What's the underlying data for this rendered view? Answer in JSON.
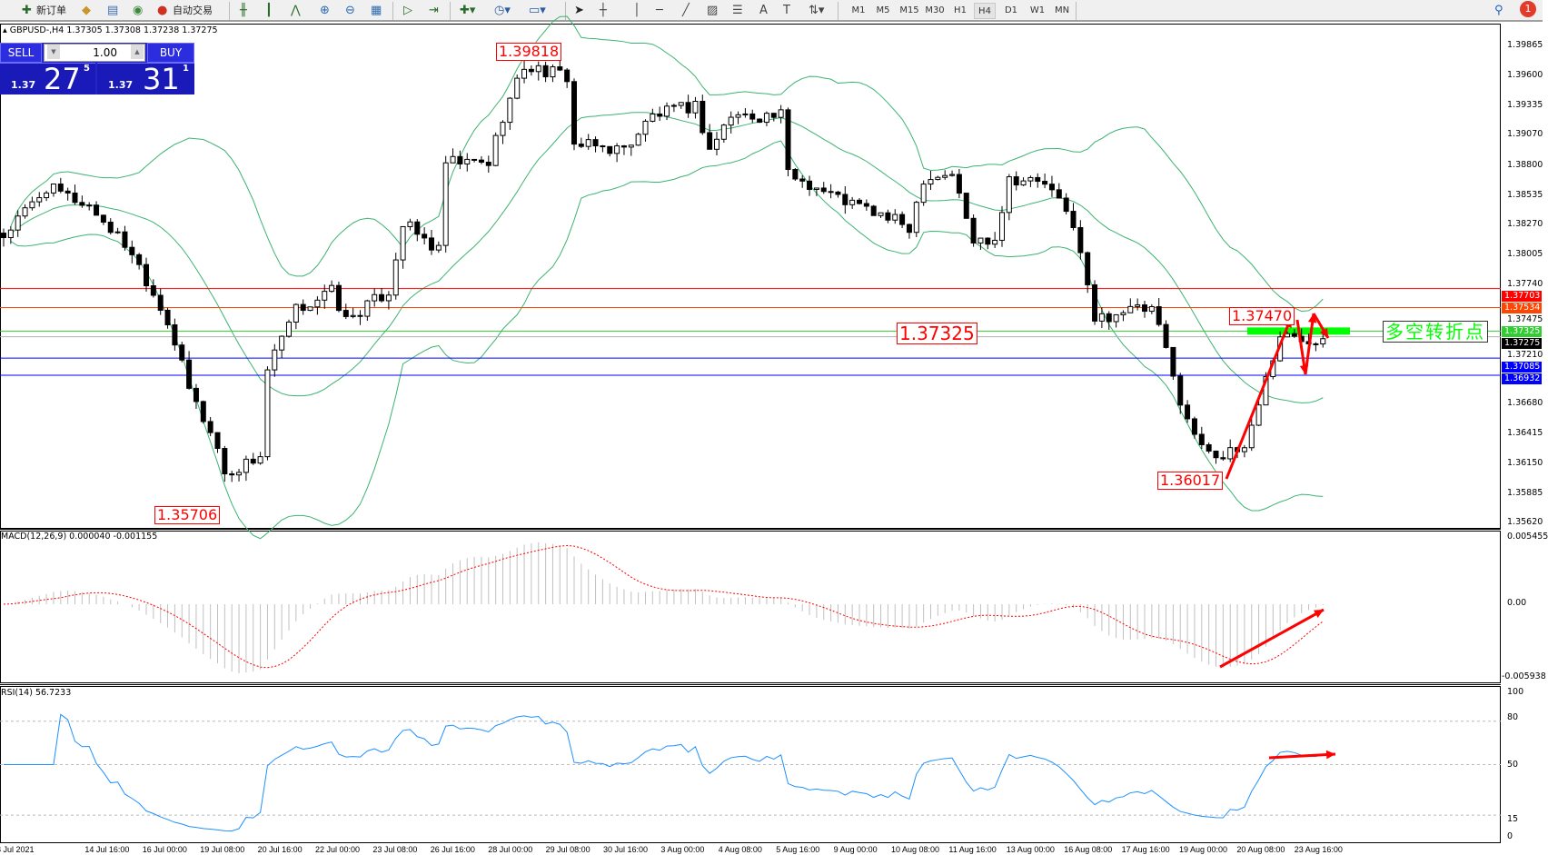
{
  "toolbar": {
    "new_order": "新订单",
    "auto_trading": "自动交易",
    "icons": [
      "new-order-icon",
      "gold-icon",
      "history-icon",
      "signal-icon",
      "auto-trading-icon",
      "bar-chart-icon",
      "candlestick-icon",
      "line-chart-icon",
      "zoom-in-icon",
      "zoom-out-icon",
      "tile-icon",
      "autoscroll-icon",
      "chart-shift-icon",
      "indicators-icon",
      "periods-icon",
      "templates-icon",
      "cursor-icon",
      "crosshair-icon",
      "vertical-line-icon",
      "horizontal-line-icon",
      "trendline-icon",
      "fibonacci-icon",
      "channel-icon",
      "text-icon",
      "label-icon",
      "arrows-icon",
      "search-icon",
      "notification-icon"
    ],
    "timeframes": [
      "M1",
      "M5",
      "M15",
      "M30",
      "H1",
      "H4",
      "D1",
      "W1",
      "MN"
    ],
    "active_timeframe": "H4",
    "notification_count": "1"
  },
  "chart": {
    "header": "GBPUSD-,H4  1.37305 1.37308 1.37238 1.37275",
    "trade": {
      "sell": "SELL",
      "buy": "BUY",
      "lot": "1.00",
      "sell_small": "1.37",
      "sell_big": "27",
      "sell_sup": "5",
      "buy_small": "1.37",
      "buy_big": "31",
      "buy_sup": "1"
    },
    "price_axis": [
      "1.39865",
      "1.39600",
      "1.39335",
      "1.39070",
      "1.38800",
      "1.38535",
      "1.38270",
      "1.38005",
      "1.37740",
      "1.37475",
      "1.37210",
      "1.36680",
      "1.36415",
      "1.36150",
      "1.35885",
      "1.35620"
    ],
    "levels": [
      {
        "price": "1.37703",
        "color": "#ff0000"
      },
      {
        "price": "1.37534",
        "color": "#ff4500"
      },
      {
        "price": "1.37325",
        "color": "#32cd32"
      },
      {
        "price": "1.37275",
        "color": "#000000"
      },
      {
        "price": "1.37085",
        "color": "#0000ff"
      },
      {
        "price": "1.36932",
        "color": "#0000ff"
      }
    ],
    "annotations": {
      "high": "1.39818",
      "low": "1.35706",
      "mid": "1.37325",
      "recent_high": "1.37470",
      "recent_low": "1.36017",
      "pivot_label": "多空转折点"
    },
    "price_path": [
      [
        0,
        1.3817
      ],
      [
        6,
        1.386
      ],
      [
        12,
        1.3844
      ],
      [
        18,
        1.3803
      ],
      [
        23,
        1.3742
      ],
      [
        26,
        1.3681
      ],
      [
        30,
        1.3629
      ],
      [
        31,
        1.3604
      ],
      [
        36,
        1.3622
      ],
      [
        37,
        1.3698
      ],
      [
        41,
        1.3751
      ],
      [
        46,
        1.3768
      ],
      [
        48,
        1.3742
      ],
      [
        54,
        1.3768
      ],
      [
        56,
        1.3829
      ],
      [
        61,
        1.3803
      ],
      [
        62,
        1.3882
      ],
      [
        68,
        1.3882
      ],
      [
        70,
        1.3924
      ],
      [
        73,
        1.3968
      ],
      [
        79,
        1.3959
      ],
      [
        80,
        1.3898
      ],
      [
        87,
        1.3894
      ],
      [
        91,
        1.3924
      ],
      [
        97,
        1.3933
      ],
      [
        99,
        1.3894
      ],
      [
        102,
        1.3924
      ],
      [
        109,
        1.3924
      ],
      [
        110,
        1.3873
      ],
      [
        117,
        1.3851
      ],
      [
        127,
        1.3825
      ],
      [
        129,
        1.3869
      ],
      [
        133,
        1.3873
      ],
      [
        136,
        1.3812
      ],
      [
        139,
        1.3816
      ],
      [
        141,
        1.3869
      ],
      [
        146,
        1.3864
      ],
      [
        150,
        1.3829
      ],
      [
        153,
        1.3742
      ],
      [
        157,
        1.3751
      ],
      [
        161,
        1.3751
      ],
      [
        163,
        1.3716
      ],
      [
        164,
        1.369
      ],
      [
        167,
        1.3638
      ],
      [
        171,
        1.362
      ],
      [
        174,
        1.3629
      ],
      [
        177,
        1.369
      ],
      [
        179,
        1.3729
      ],
      [
        182,
        1.3725
      ],
      [
        185,
        1.3728
      ]
    ],
    "macd": {
      "label": "MACD(12,26,9) 0.000040 -0.001155",
      "axis": [
        "0.005455",
        "0.00",
        "-0.005938"
      ]
    },
    "rsi": {
      "label": "RSI(14) 56.7233",
      "axis": [
        "100",
        "80",
        "50",
        "15",
        "0"
      ],
      "levels": [
        80,
        50,
        15
      ]
    },
    "dates": [
      "8 Jul 2021",
      "14 Jul 16:00",
      "16 Jul 00:00",
      "19 Jul 08:00",
      "20 Jul 16:00",
      "22 Jul 00:00",
      "23 Jul 08:00",
      "26 Jul 16:00",
      "28 Jul 00:00",
      "29 Jul 08:00",
      "30 Jul 16:00",
      "3 Aug 00:00",
      "4 Aug 08:00",
      "5 Aug 16:00",
      "9 Aug 00:00",
      "10 Aug 08:00",
      "11 Aug 16:00",
      "13 Aug 00:00",
      "16 Aug 08:00",
      "17 Aug 16:00",
      "19 Aug 00:00",
      "20 Aug 08:00",
      "23 Aug 16:00"
    ],
    "colors": {
      "bands": "#3cb371",
      "macd_signal": "#ff0000",
      "macd_hist": "#c0c0c0",
      "rsi": "#1e90ff",
      "annotation": "#ff0000",
      "pivot": "#00ff00"
    }
  }
}
